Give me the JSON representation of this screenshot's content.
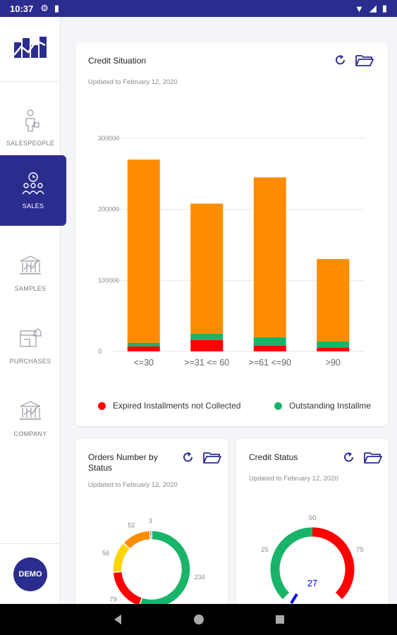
{
  "status_bar": {
    "time": "10:37"
  },
  "sidebar": {
    "items": [
      {
        "label": "SALESPEOPLE"
      },
      {
        "label": "SALES"
      },
      {
        "label": "SAMPLES"
      },
      {
        "label": "PURCHASES"
      },
      {
        "label": "COMPANY"
      }
    ],
    "avatar": "DEMO"
  },
  "credit_situation": {
    "title": "Credit Situation",
    "updated": "Updated to  February 12, 2020",
    "legend": [
      {
        "label": "Expired Installments not Collected",
        "color": "#ff0000"
      },
      {
        "label": "Outstanding Installme",
        "color": "#00b050"
      }
    ]
  },
  "orders_card": {
    "title": "Orders Number by Status",
    "updated": "Updated to  February 12, 2020"
  },
  "credit_status_card": {
    "title": "Credit Status",
    "updated": "Updated to  February 12, 2020"
  },
  "chart_data": [
    {
      "type": "bar",
      "title": "Credit Situation",
      "categories": [
        "<=30",
        ">=31 <= 60",
        ">=61 <=90",
        ">90"
      ],
      "ylim": [
        0,
        300000
      ],
      "yticks": [
        "0",
        "100000",
        "200000",
        "300000"
      ],
      "grid": true,
      "stacked": true,
      "series": [
        {
          "name": "Expired Installments not Collected",
          "color": "#ff0000",
          "values": [
            7000,
            16000,
            8000,
            5000
          ]
        },
        {
          "name": "Outstanding Installme",
          "color": "#19b46a",
          "values": [
            5000,
            9000,
            12000,
            9000
          ]
        },
        {
          "color": "#ff8c00",
          "values": [
            258000,
            183000,
            225000,
            116000
          ]
        }
      ]
    },
    {
      "type": "pie",
      "title": "Orders Number by Status",
      "slices": [
        {
          "label": "234",
          "value": 234,
          "color": "#19b46a"
        },
        {
          "label": "79",
          "value": 79,
          "color": "#ff0000"
        },
        {
          "label": "56",
          "value": 56,
          "color": "#ffd400"
        },
        {
          "label": "52",
          "value": 52,
          "color": "#ff8c00"
        },
        {
          "label": "3",
          "value": 3,
          "color": "#2b2d8e"
        }
      ]
    },
    {
      "type": "gauge",
      "title": "Credit Status",
      "value": 27,
      "labels": [
        "25",
        "50",
        "75"
      ],
      "bands": [
        {
          "color": "#19b46a"
        },
        {
          "color": "#ff0000"
        }
      ]
    }
  ]
}
